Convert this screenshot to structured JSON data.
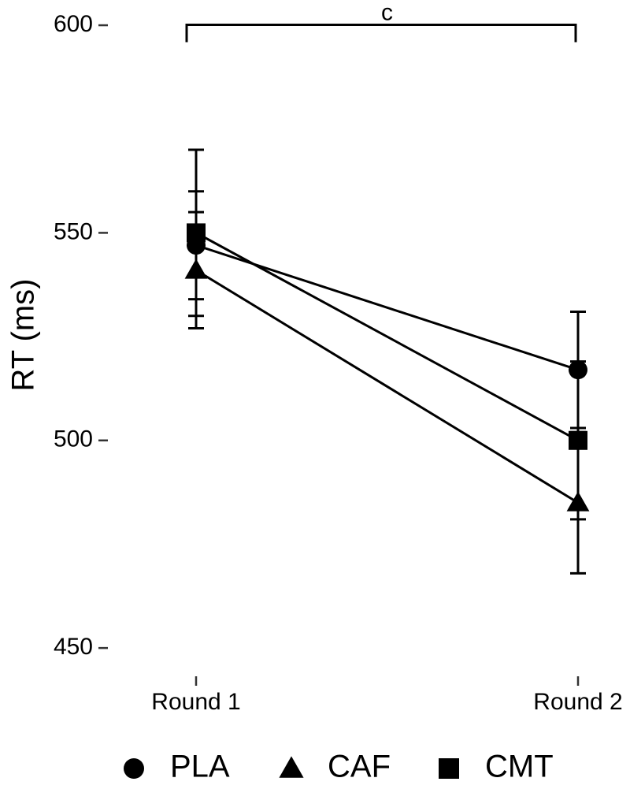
{
  "chart_data": {
    "type": "line",
    "y_label": "RT (ms)",
    "categories": [
      "Round 1",
      "Round 2"
    ],
    "series": [
      {
        "name": "PLA",
        "color": "#000000",
        "marker": "circle",
        "values": [
          547,
          517
        ],
        "errors": [
          13,
          14
        ]
      },
      {
        "name": "CAF",
        "color": "#000000",
        "marker": "triangle",
        "values": [
          541,
          485
        ],
        "errors": [
          14,
          17
        ]
      },
      {
        "name": "CMT",
        "color": "#000000",
        "marker": "square",
        "values": [
          550,
          500
        ],
        "errors": [
          20,
          19
        ]
      }
    ],
    "ylim": [
      443,
      602
    ],
    "yticks": [
      450,
      500,
      550,
      600
    ],
    "annotation": "c",
    "legend": "bottom"
  }
}
